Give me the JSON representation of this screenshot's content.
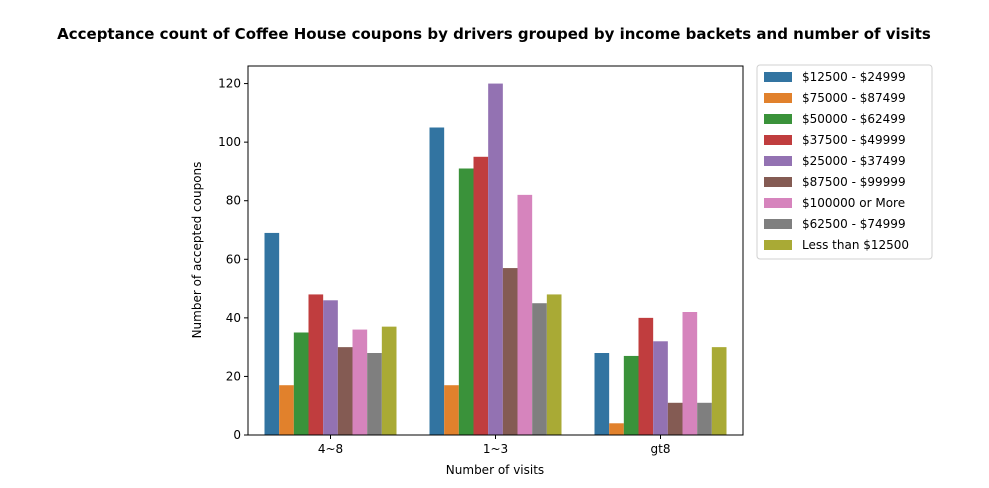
{
  "chart_data": {
    "type": "bar",
    "title": "Acceptance count of Coffee House coupons by drivers grouped by income backets and number of visits",
    "xlabel": "Number of visits",
    "ylabel": "Number of accepted coupons",
    "categories": [
      "4~8",
      "1~3",
      "gt8"
    ],
    "ylim": [
      0,
      126
    ],
    "yticks": [
      0,
      20,
      40,
      60,
      80,
      100,
      120
    ],
    "grid": false,
    "legend_position": "outside-right",
    "series": [
      {
        "name": "$12500 - $24999",
        "color": "#3274a1",
        "values": [
          69,
          105,
          28
        ]
      },
      {
        "name": "$75000 - $87499",
        "color": "#e1812c",
        "values": [
          17,
          17,
          4
        ]
      },
      {
        "name": "$50000 - $62499",
        "color": "#3a923a",
        "values": [
          35,
          91,
          27
        ]
      },
      {
        "name": "$37500 - $49999",
        "color": "#c03d3e",
        "values": [
          48,
          95,
          40
        ]
      },
      {
        "name": "$25000 - $37499",
        "color": "#9372b2",
        "values": [
          46,
          120,
          32
        ]
      },
      {
        "name": "$87500 - $99999",
        "color": "#845b53",
        "values": [
          30,
          57,
          11
        ]
      },
      {
        "name": "$100000 or More",
        "color": "#d684bd",
        "values": [
          36,
          82,
          42
        ]
      },
      {
        "name": "$62500 - $74999",
        "color": "#7f7f7f",
        "values": [
          28,
          45,
          11
        ]
      },
      {
        "name": "Less than $12500",
        "color": "#a9aa35",
        "values": [
          37,
          48,
          30
        ]
      }
    ]
  }
}
